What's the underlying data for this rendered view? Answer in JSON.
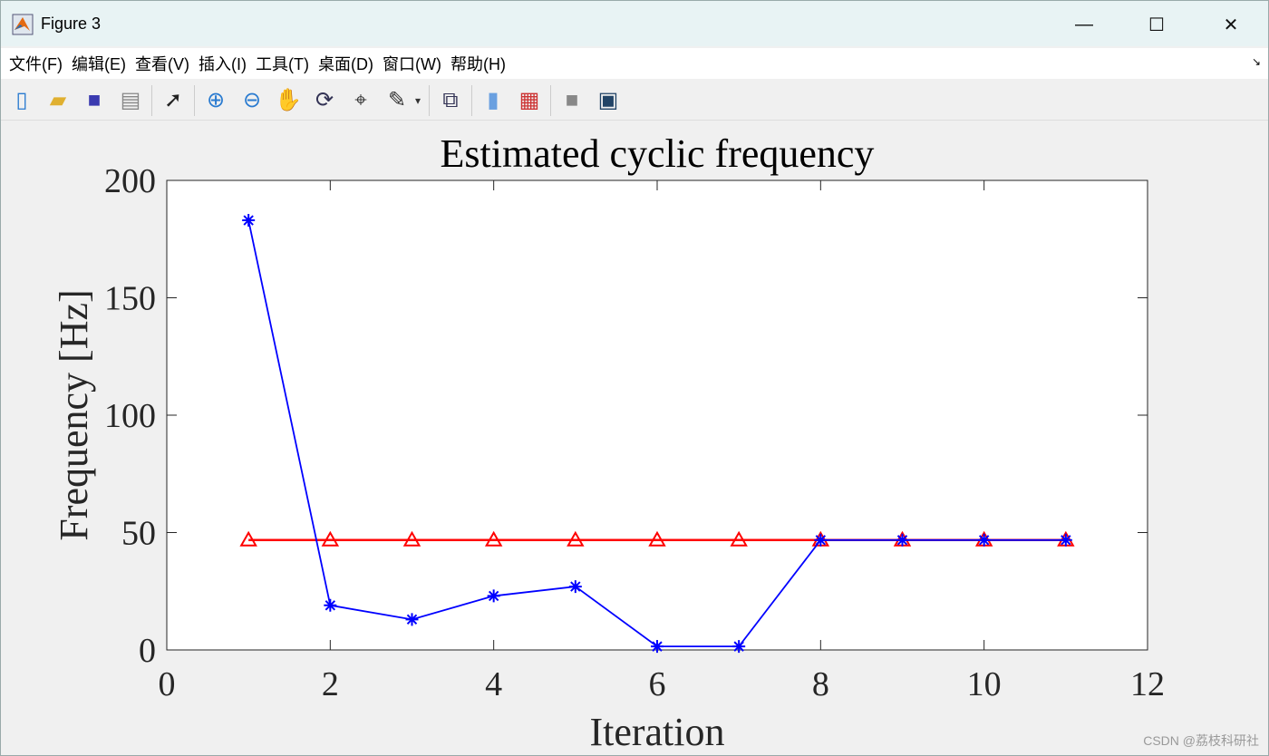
{
  "window": {
    "title": "Figure 3",
    "minimize": "—",
    "maximize": "☐",
    "close": "✕"
  },
  "menu": [
    "文件(F)",
    "编辑(E)",
    "查看(V)",
    "插入(I)",
    "工具(T)",
    "桌面(D)",
    "窗口(W)",
    "帮助(H)"
  ],
  "toolbar": [
    "new-file-icon",
    "open-folder-icon",
    "save-icon",
    "print-icon",
    "|",
    "pointer-icon",
    "|",
    "zoom-in-icon",
    "zoom-out-icon",
    "pan-hand-icon",
    "rotate-3d-icon",
    "data-cursor-icon",
    "brush-icon",
    "brush-dropdown-icon",
    "|",
    "link-plot-icon",
    "|",
    "colorbar-icon",
    "legend-icon",
    "|",
    "hide-plot-tools-icon",
    "show-plot-tools-icon"
  ],
  "watermark": "CSDN @荔枝科研社",
  "chart_data": {
    "type": "line",
    "title": "Estimated cyclic frequency",
    "xlabel": "Iteration",
    "ylabel": "Frequency [Hz]",
    "xlim": [
      0,
      12
    ],
    "ylim": [
      0,
      200
    ],
    "xticks": [
      0,
      2,
      4,
      6,
      8,
      10,
      12
    ],
    "yticks": [
      0,
      50,
      100,
      150,
      200
    ],
    "grid": false,
    "x": [
      1,
      2,
      3,
      4,
      5,
      6,
      7,
      8,
      9,
      10,
      11
    ],
    "series": [
      {
        "values": [
          183,
          19,
          13,
          23,
          27,
          1.5,
          1.5,
          46.8,
          46.8,
          46.8,
          46.8
        ],
        "color": "#0000ff",
        "marker": "asterisk"
      },
      {
        "values": [
          46.8,
          46.8,
          46.8,
          46.8,
          46.8,
          46.8,
          46.8,
          46.8,
          46.8,
          46.8,
          46.8
        ],
        "color": "#ff0000",
        "marker": "triangle"
      }
    ]
  }
}
